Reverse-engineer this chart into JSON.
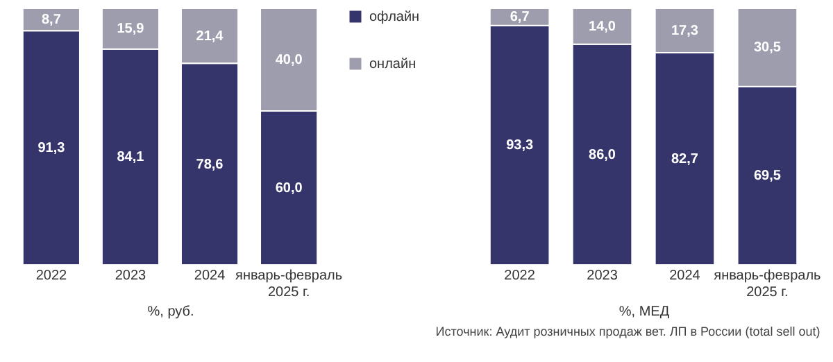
{
  "chart_data": [
    {
      "type": "bar",
      "stacked": true,
      "categories": [
        "2022",
        "2023",
        "2024",
        "январь-февраль 2025 г."
      ],
      "xlabel": "%, руб.",
      "legend": "right",
      "series": [
        {
          "name": "офлайн",
          "color": "#35346b",
          "values": [
            91.3,
            84.1,
            78.6,
            60.0
          ],
          "value_labels": [
            "91,3",
            "84,1",
            "78,6",
            "60,0"
          ]
        },
        {
          "name": "онлайн",
          "color": "#9d9dae",
          "values": [
            8.7,
            15.9,
            21.4,
            40.0
          ],
          "value_labels": [
            "8,7",
            "15,9",
            "21,4",
            "40,0"
          ]
        }
      ]
    },
    {
      "type": "bar",
      "stacked": true,
      "categories": [
        "2022",
        "2023",
        "2024",
        "январь-февраль 2025 г."
      ],
      "xlabel": "%, МЕД",
      "annotations": [
        "Источник: Аудит розничных продаж вет. ЛП в России (total sell out)"
      ],
      "series": [
        {
          "color": "#35346b",
          "values": [
            93.3,
            86.0,
            82.7,
            69.5
          ],
          "value_labels": [
            "93,3",
            "86,0",
            "82,7",
            "69,5"
          ]
        },
        {
          "color": "#9d9dae",
          "values": [
            6.7,
            14.0,
            17.3,
            30.5
          ],
          "value_labels": [
            "6,7",
            "14,0",
            "17,3",
            "30,5"
          ]
        }
      ]
    }
  ]
}
